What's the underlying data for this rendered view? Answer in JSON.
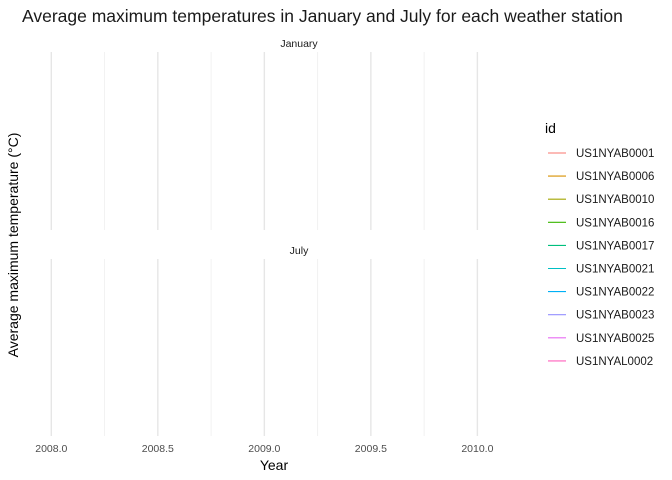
{
  "chart_data": {
    "type": "line",
    "title": "Average maximum temperatures in January and July for each weather station",
    "xlabel": "Year",
    "ylabel": "Average maximum temperature (°C)",
    "xlim": [
      2007.9,
      2010.2
    ],
    "x_ticks": [
      2008.0,
      2008.5,
      2009.0,
      2009.5,
      2010.0
    ],
    "x_tick_labels": [
      "2008.0",
      "2008.5",
      "2009.0",
      "2009.5",
      "2010.0"
    ],
    "x_minor_ticks": [
      2008.25,
      2008.75,
      2009.25,
      2009.75
    ],
    "grid": true,
    "facets": [
      {
        "label": "January",
        "series": []
      },
      {
        "label": "July",
        "series": []
      }
    ],
    "legend": {
      "title": "id",
      "position": "right",
      "entries": [
        {
          "name": "US1NYAB0001",
          "color": "#F8766D"
        },
        {
          "name": "US1NYAB0006",
          "color": "#D89000"
        },
        {
          "name": "US1NYAB0010",
          "color": "#A3A500"
        },
        {
          "name": "US1NYAB0016",
          "color": "#39B600"
        },
        {
          "name": "US1NYAB0017",
          "color": "#00BF7D"
        },
        {
          "name": "US1NYAB0021",
          "color": "#00BFC4"
        },
        {
          "name": "US1NYAB0022",
          "color": "#00B0F6"
        },
        {
          "name": "US1NYAB0023",
          "color": "#9590FF"
        },
        {
          "name": "US1NYAB0025",
          "color": "#E76BF3"
        },
        {
          "name": "US1NYAL0002",
          "color": "#FF62BC"
        }
      ]
    }
  }
}
